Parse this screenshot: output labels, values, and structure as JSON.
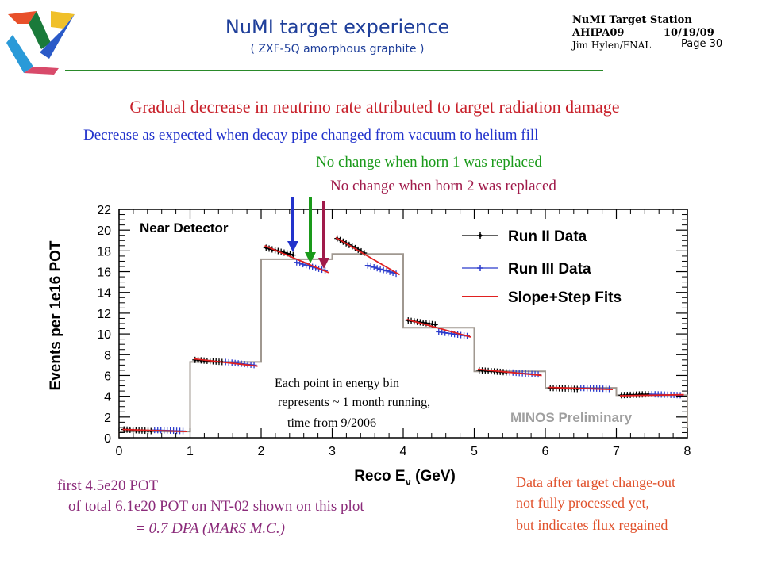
{
  "header": {
    "title": "NuMI target experience",
    "subtitle": "( ZXF-5Q amorphous graphite )",
    "station": "NuMI Target Station",
    "meeting": "AHIPA09",
    "date": "10/19/09",
    "author": "Jim Hylen/FNAL",
    "page": "Page 30"
  },
  "headline": "Gradual decrease in neutrino rate attributed to target radiation damage",
  "annotations": {
    "decay_pipe": "Decrease as expected when decay pipe changed from vacuum to helium fill",
    "horn1": "No change when horn 1 was replaced",
    "horn2": "No change when horn 2 was replaced",
    "point_note_1": "Each point in energy bin",
    "point_note_2": "represents ~ 1 month running,",
    "point_note_3": "time from 9/2006",
    "left_1": "first 4.5e20 POT",
    "left_2": "of total 6.1e20 POT on NT-02 shown on this plot",
    "left_3": "= 0.7 DPA (MARS M.C.)",
    "right_1": "Data after target change-out",
    "right_2": "not fully processed yet,",
    "right_3": "but indicates flux regained"
  },
  "colors": {
    "title": "#1f3f9a",
    "headline": "#c8202a",
    "decay_pipe": "#2233cc",
    "horn1": "#1a9a1a",
    "horn2": "#a01a4a",
    "fit": "#e02020",
    "mc": "#a09890",
    "run2": "#000000",
    "run3": "#2a3acc"
  },
  "chart_data": {
    "type": "line",
    "xlabel": "Reco E",
    "xlabel_sub": "ν",
    "xlabel_unit": " (GeV)",
    "ylabel": "Events per 1e16 POT",
    "xlim": [
      0,
      8
    ],
    "ylim": [
      0,
      22
    ],
    "x_ticks": [
      "0",
      "1",
      "2",
      "3",
      "4",
      "5",
      "6",
      "7",
      "8"
    ],
    "y_ticks": [
      "0",
      "2",
      "4",
      "6",
      "8",
      "10",
      "12",
      "14",
      "16",
      "18",
      "20",
      "22"
    ],
    "inset_label": "Near Detector",
    "watermark": "MINOS Preliminary",
    "legend": [
      "Run II Data",
      "Run III Data",
      "Slope+Step Fits"
    ],
    "mc_histogram": {
      "edges": [
        0,
        1,
        2,
        3,
        4,
        5,
        6,
        7,
        8
      ],
      "values": [
        0.6,
        7.3,
        17.2,
        17.7,
        10.6,
        6.4,
        4.8,
        4.1
      ]
    },
    "bins": [
      {
        "lo": 0,
        "hi": 1,
        "run2": [
          0.8,
          0.65
        ],
        "run3": [
          0.75,
          0.65
        ],
        "fit": [
          0.8,
          0.6
        ]
      },
      {
        "lo": 1,
        "hi": 2,
        "run2": [
          7.5,
          7.3
        ],
        "run3": [
          7.3,
          7.0
        ],
        "fit": [
          7.6,
          6.9
        ]
      },
      {
        "lo": 2,
        "hi": 3,
        "run2": [
          18.3,
          17.6
        ],
        "run3": [
          16.9,
          16.1
        ],
        "fit": [
          18.5,
          15.9
        ]
      },
      {
        "lo": 3,
        "hi": 4,
        "run2": [
          19.2,
          17.8
        ],
        "run3": [
          16.6,
          15.8
        ],
        "fit": [
          19.3,
          15.7
        ]
      },
      {
        "lo": 4,
        "hi": 5,
        "run2": [
          11.3,
          10.9
        ],
        "run3": [
          10.2,
          9.8
        ],
        "fit": [
          11.4,
          9.7
        ]
      },
      {
        "lo": 5,
        "hi": 6,
        "run2": [
          6.5,
          6.3
        ],
        "run3": [
          6.3,
          6.1
        ],
        "fit": [
          6.6,
          6.0
        ]
      },
      {
        "lo": 6,
        "hi": 7,
        "run2": [
          4.8,
          4.7
        ],
        "run3": [
          4.8,
          4.7
        ],
        "fit": [
          4.85,
          4.65
        ]
      },
      {
        "lo": 7,
        "hi": 8,
        "run2": [
          4.1,
          4.2
        ],
        "run3": [
          4.2,
          4.1
        ],
        "fit": [
          4.05,
          4.15
        ]
      }
    ]
  }
}
